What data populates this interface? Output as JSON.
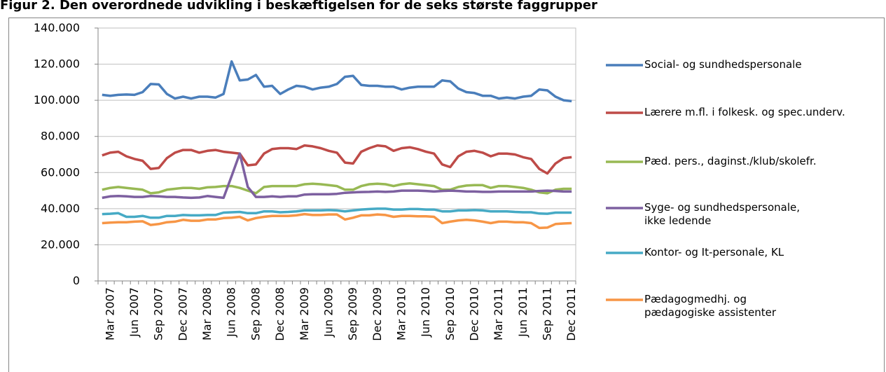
{
  "chart_data": {
    "type": "line",
    "title": "Figur 2. Den overordnede udvikling i beskæftigelsen for de seks største faggrupper",
    "categories": [
      null,
      "Mar 2007",
      null,
      null,
      "Jun 2007",
      null,
      null,
      "Sep 2007",
      null,
      null,
      "Dec 2007",
      null,
      null,
      "Mar 2008",
      null,
      null,
      "Jun 2008",
      null,
      null,
      "Sep 2008",
      null,
      null,
      "Dec 2008",
      null,
      null,
      "Mar 2009",
      null,
      null,
      "Jun 2009",
      null,
      null,
      "Sep 2009",
      null,
      null,
      "Dec 2009",
      null,
      null,
      "Mar 2010",
      null,
      null,
      "Jun 2010",
      null,
      null,
      "Sep 2010",
      null,
      null,
      "Dec 2010",
      null,
      null,
      "Mar 2011",
      null,
      null,
      "Jun 2011",
      null,
      null,
      "Sep 2011",
      null,
      null,
      "Dec 2011"
    ],
    "ylim": [
      0,
      140000
    ],
    "yticks": [
      0,
      {
        "value": 20000,
        "label": "20.000"
      },
      {
        "value": 40000,
        "label": "40.000"
      },
      {
        "value": 60000,
        "label": "60.000"
      },
      {
        "value": 80000,
        "label": "80.000"
      },
      {
        "value": 100000,
        "label": "100.000"
      },
      {
        "value": 120000,
        "label": "120.000"
      },
      {
        "value": 140000,
        "label": "140.000"
      }
    ],
    "grid": true,
    "legend": "right",
    "series": [
      {
        "name": "Social- og sundhedspersonale",
        "color": "#4a7ebb",
        "values": [
          103000,
          102500,
          103000,
          103200,
          103000,
          104500,
          109000,
          108800,
          103500,
          101000,
          102000,
          101000,
          102000,
          102000,
          101500,
          103500,
          121500,
          111000,
          111500,
          114000,
          107500,
          108000,
          103500,
          106000,
          108000,
          107500,
          106000,
          107000,
          107500,
          109000,
          113000,
          113500,
          108500,
          108000,
          108000,
          107500,
          107500,
          106000,
          107000,
          107500,
          107500,
          107500,
          111000,
          110500,
          106500,
          104500,
          104000,
          102500,
          102500,
          101000,
          101500,
          101000,
          102000,
          102500,
          106000,
          105500,
          102000,
          100000,
          99500
        ]
      },
      {
        "name": "Lærere m.fl. i folkesk. og spec.underv.",
        "color": "#be4b48",
        "values": [
          69500,
          71000,
          71500,
          69000,
          67500,
          66500,
          62000,
          62500,
          68000,
          71000,
          72500,
          72500,
          71000,
          72000,
          72500,
          71500,
          71000,
          70500,
          64000,
          64500,
          70500,
          73000,
          73500,
          73500,
          73000,
          75000,
          74500,
          73500,
          72000,
          71000,
          65500,
          65000,
          71500,
          73500,
          75000,
          74500,
          72000,
          73500,
          74000,
          73000,
          71500,
          70500,
          64500,
          63000,
          69000,
          71500,
          72000,
          71000,
          69000,
          70500,
          70500,
          70000,
          68500,
          67500,
          62000,
          59500,
          65000,
          68000,
          68500
        ]
      },
      {
        "name": "Pæd. pers., daginst./klub/skolefr.",
        "color": "#98b954",
        "values": [
          50500,
          51500,
          52000,
          51500,
          51000,
          50500,
          48500,
          49000,
          50500,
          51000,
          51500,
          51500,
          51000,
          51800,
          52000,
          52500,
          52500,
          51500,
          50000,
          48500,
          52000,
          52500,
          52500,
          52500,
          52500,
          53500,
          53800,
          53500,
          53000,
          52500,
          50500,
          50500,
          52500,
          53500,
          53800,
          53500,
          52500,
          53500,
          54000,
          53500,
          53000,
          52500,
          50500,
          50500,
          52000,
          52800,
          53000,
          53000,
          51500,
          52500,
          52500,
          52000,
          51500,
          50500,
          49000,
          48500,
          50500,
          51000,
          51000
        ]
      },
      {
        "name": "Syge- og sundhedspersonale, ikke ledende",
        "color": "#7d60a0",
        "values": [
          46000,
          46800,
          47000,
          46800,
          46500,
          46500,
          47000,
          46800,
          46500,
          46500,
          46200,
          46000,
          46200,
          47000,
          46500,
          46000,
          58000,
          70500,
          52000,
          46500,
          46500,
          46800,
          46500,
          46800,
          46800,
          47800,
          48000,
          48000,
          48000,
          48200,
          48800,
          49000,
          49200,
          49300,
          49500,
          49300,
          49500,
          50000,
          50000,
          50000,
          49800,
          49500,
          49800,
          50000,
          49800,
          49500,
          49500,
          49300,
          49300,
          49500,
          49500,
          49500,
          49500,
          49500,
          49800,
          50000,
          49800,
          49500,
          49500
        ]
      },
      {
        "name": "Kontor- og It-personale, KL",
        "color": "#46aac5",
        "values": [
          37000,
          37200,
          37500,
          35500,
          35500,
          36000,
          35000,
          35000,
          36000,
          36000,
          36500,
          36300,
          36300,
          36500,
          36500,
          37800,
          38000,
          38200,
          37500,
          37500,
          38500,
          38500,
          38000,
          38200,
          38500,
          39000,
          39000,
          39000,
          39200,
          39000,
          38500,
          39000,
          39500,
          39800,
          40000,
          40000,
          39500,
          39500,
          39800,
          39800,
          39500,
          39500,
          38500,
          38500,
          39000,
          39000,
          39200,
          39000,
          38500,
          38500,
          38500,
          38200,
          38000,
          38000,
          37300,
          37200,
          37800,
          37800,
          37800
        ]
      },
      {
        "name": "Pædagogmedhj. og pædagogiske assistenter",
        "color": "#f79646",
        "values": [
          32000,
          32300,
          32500,
          32500,
          32800,
          33000,
          31000,
          31500,
          32500,
          32800,
          33800,
          33300,
          33300,
          34000,
          34000,
          34800,
          35000,
          35500,
          33500,
          34800,
          35500,
          36000,
          36000,
          36000,
          36300,
          37000,
          36500,
          36500,
          36800,
          36800,
          34000,
          35000,
          36300,
          36300,
          36800,
          36500,
          35500,
          36000,
          36000,
          35800,
          35800,
          35500,
          32000,
          32800,
          33500,
          33800,
          33500,
          32800,
          32000,
          32800,
          32800,
          32500,
          32500,
          32000,
          29300,
          29500,
          31500,
          31800,
          32000
        ]
      }
    ]
  }
}
